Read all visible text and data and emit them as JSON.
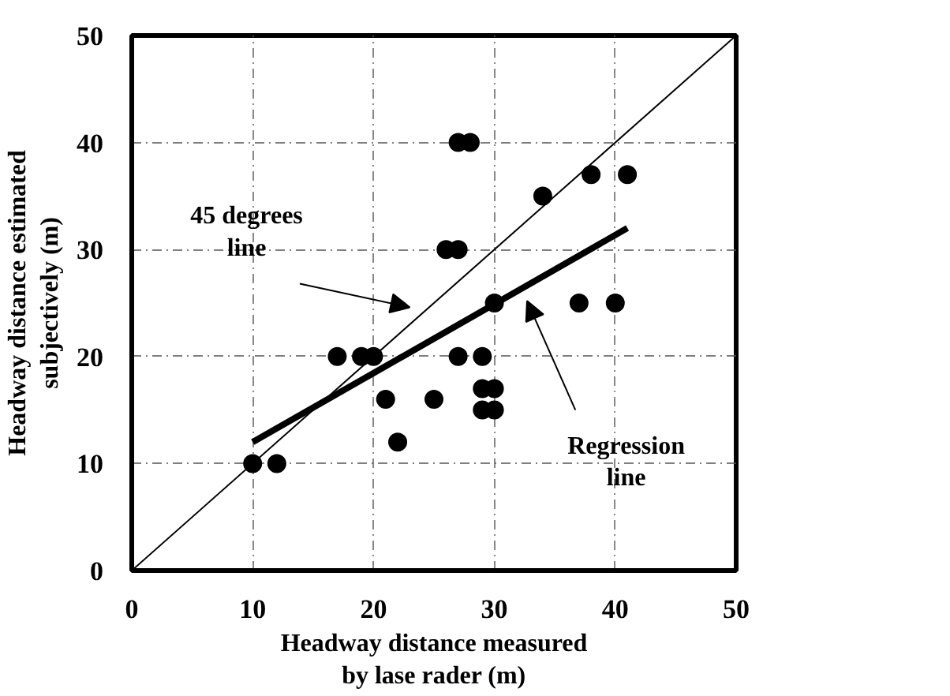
{
  "chart_data": {
    "type": "scatter",
    "xlabel": "Headway distance measured by lase rader (m)",
    "ylabel": "Headway distance estimated subjectively (m)",
    "xlim": [
      0,
      50
    ],
    "ylim": [
      0,
      50
    ],
    "xticks": [
      0,
      10,
      20,
      30,
      40,
      50
    ],
    "yticks": [
      0,
      10,
      20,
      30,
      40,
      50
    ],
    "grid": true,
    "series": [
      {
        "type": "line",
        "color": "#000000",
        "x": [
          0,
          50
        ],
        "values": [
          0,
          50
        ]
      },
      {
        "type": "line",
        "color": "#000000",
        "x": [
          10,
          41
        ],
        "values": [
          12,
          32
        ]
      },
      {
        "marker": "circle",
        "color": "#000000",
        "x": [
          10,
          12,
          17,
          19,
          20,
          21,
          22,
          25,
          26,
          27,
          27,
          28,
          27,
          29,
          29,
          30,
          29,
          30,
          30,
          34,
          37,
          38,
          40,
          41
        ],
        "values": [
          10,
          10,
          20,
          20,
          20,
          16,
          12,
          16,
          30,
          30,
          40,
          40,
          20,
          20,
          17,
          17,
          15,
          15,
          25,
          35,
          25,
          37,
          25,
          37
        ]
      }
    ],
    "annotations": [
      "45 degrees line",
      "Regression line"
    ]
  }
}
